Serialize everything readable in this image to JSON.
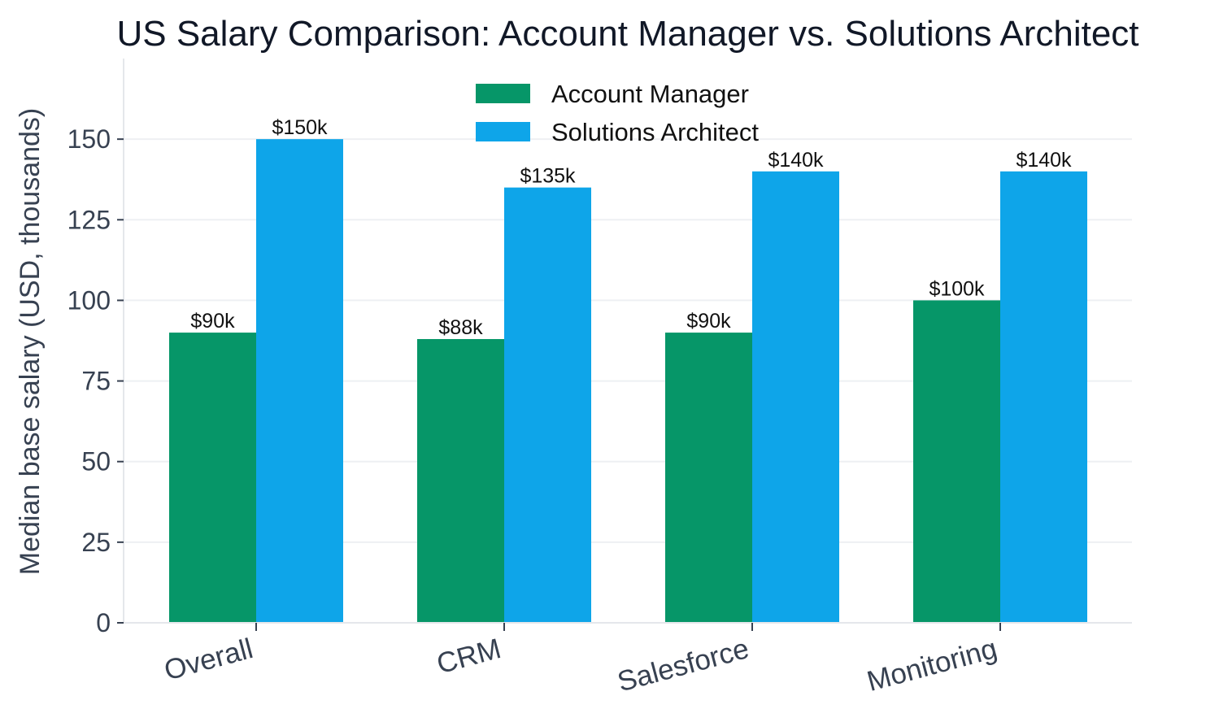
{
  "chart_data": {
    "type": "bar",
    "title": "US Salary Comparison: Account Manager vs. Solutions Architect",
    "xlabel": "",
    "ylabel": "Median base salary (USD, thousands)",
    "categories": [
      "Overall",
      "CRM",
      "Salesforce",
      "Monitoring"
    ],
    "series": [
      {
        "name": "Account Manager",
        "color": "#069668",
        "values": [
          90,
          88,
          90,
          100
        ],
        "labels": [
          "$90k",
          "$88k",
          "$90k",
          "$100k"
        ]
      },
      {
        "name": "Solutions Architect",
        "color": "#0EA5E9",
        "values": [
          150,
          135,
          140,
          140
        ],
        "labels": [
          "$150k",
          "$135k",
          "$140k",
          "$140k"
        ]
      }
    ],
    "ylim": [
      0,
      175
    ],
    "yticks": [
      0,
      25,
      50,
      75,
      100,
      125,
      150
    ],
    "grid": "horizontal",
    "legend_position": "top-center"
  }
}
